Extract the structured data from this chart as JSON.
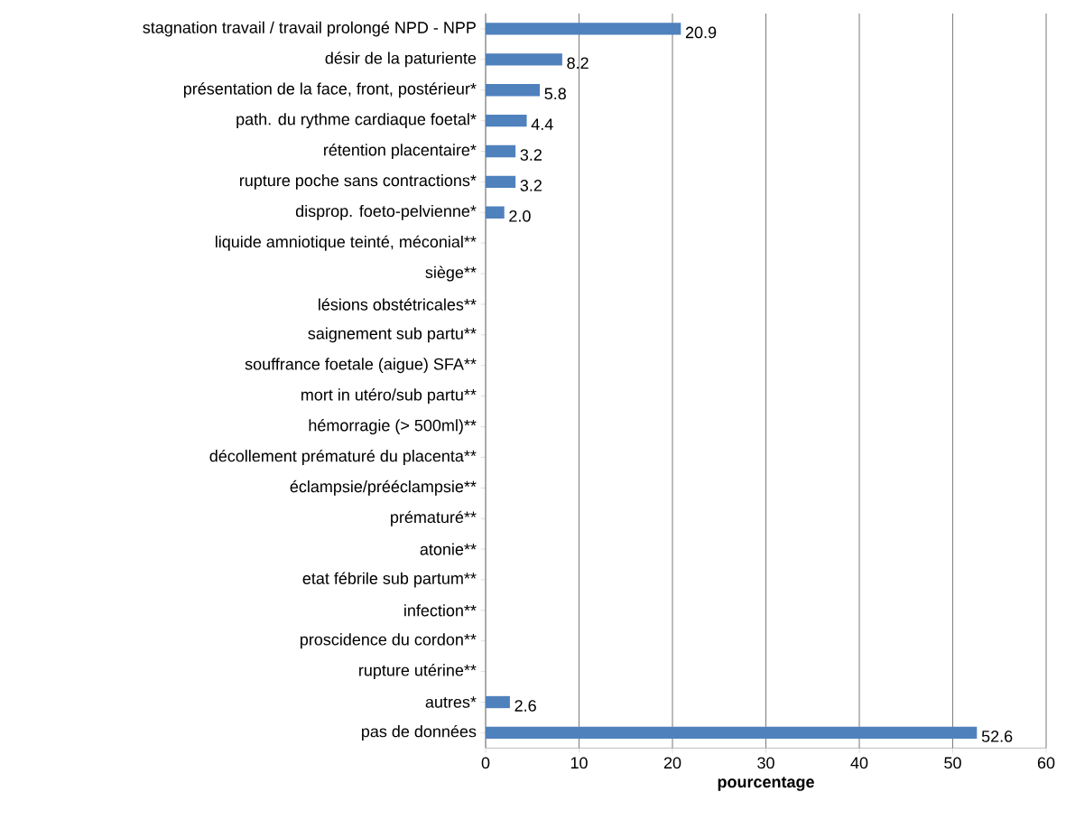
{
  "chart_data": {
    "type": "bar",
    "orientation": "horizontal",
    "xlabel": "pourcentage",
    "categories": [
      "stagnation travail / travail prolongé NPD - NPP",
      "désir de la paturiente",
      "présentation de la face, front, postérieur*",
      "path. du rythme cardiaque foetal*",
      "rétention placentaire*",
      "rupture poche sans contractions*",
      "disprop. foeto-pelvienne*",
      "liquide amniotique teinté, méconial**",
      "siège**",
      "lésions obstétricales**",
      "saignement sub partu**",
      "souffrance foetale (aigue) SFA**",
      "mort in utéro/sub partu**",
      "hémorragie (> 500ml)**",
      "décollement prématuré du placenta**",
      "éclampsie/prééclampsie**",
      "prématuré**",
      "atonie**",
      "etat fébrile sub partum**",
      "infection**",
      "proscidence du cordon**",
      "rupture utérine**",
      "autres*",
      "pas de données"
    ],
    "values": [
      20.9,
      8.2,
      5.8,
      4.4,
      3.2,
      3.2,
      2.0,
      null,
      null,
      null,
      null,
      null,
      null,
      null,
      null,
      null,
      null,
      null,
      null,
      null,
      null,
      null,
      2.6,
      52.6
    ],
    "value_labels": [
      "20.9",
      "8.2",
      "5.8",
      "4.4",
      "3.2",
      "3.2",
      "2.0",
      null,
      null,
      null,
      null,
      null,
      null,
      null,
      null,
      null,
      null,
      null,
      null,
      null,
      null,
      null,
      "2.6",
      "52.6"
    ],
    "color": "#4f81bd",
    "xlim": [
      0,
      60
    ],
    "xticks": [
      0,
      10,
      20,
      30,
      40,
      50,
      60
    ],
    "grid": "x"
  }
}
